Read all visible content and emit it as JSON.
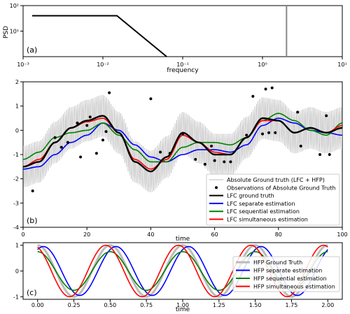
{
  "chart_data": [
    {
      "panel": "(a)",
      "type": "line",
      "xlabel": "frequency",
      "ylabel": "PSD",
      "xscale": "log",
      "yscale": "log",
      "xlim": [
        0.001,
        10
      ],
      "ylim": [
        1,
        100
      ],
      "xticks": [
        {
          "v": 0.001,
          "label": "10⁻³"
        },
        {
          "v": 0.01,
          "label": "10⁻²"
        },
        {
          "v": 0.1,
          "label": "10⁻¹"
        },
        {
          "v": 1,
          "label": "10⁰"
        },
        {
          "v": 10,
          "label": "10¹"
        }
      ],
      "yticks": [
        {
          "v": 10,
          "label": "10¹"
        },
        {
          "v": 100,
          "label": "10²"
        }
      ],
      "series": [
        {
          "color": "#000000",
          "x": [
            0.0013,
            0.015,
            0.063
          ],
          "y": [
            40,
            40,
            1
          ]
        },
        {
          "color": "#888888",
          "x": [
            2.0,
            2.0
          ],
          "y": [
            1,
            100
          ]
        }
      ]
    },
    {
      "panel": "(b)",
      "type": "line",
      "xlabel": "time",
      "xlim": [
        0,
        100
      ],
      "ylim": [
        -4,
        2
      ],
      "xticks": [
        0,
        20,
        40,
        60,
        80,
        100
      ],
      "yticks": [
        -4,
        -3,
        -2,
        -1,
        0,
        1,
        2
      ],
      "hfp_oscillation": {
        "frequency": 2.0,
        "amplitude": 0.9
      },
      "lfc_truth": {
        "x": [
          0,
          5,
          10,
          15,
          20,
          25,
          30,
          35,
          40,
          45,
          50,
          55,
          60,
          65,
          70,
          75,
          80,
          85,
          90,
          95,
          100
        ],
        "y": [
          -1.5,
          -1.3,
          -0.5,
          0.1,
          0.4,
          0.6,
          -0.1,
          -1.3,
          -1.7,
          -1.1,
          -0.1,
          -0.5,
          -1.0,
          -1.0,
          -0.3,
          0.5,
          0.4,
          -0.1,
          0.1,
          -0.1,
          0.1
        ]
      },
      "observations": {
        "x": [
          3,
          10,
          12,
          14,
          17,
          18,
          20,
          21,
          23,
          25,
          26,
          27,
          40,
          43,
          46,
          50,
          54,
          57,
          59,
          60,
          63,
          65,
          70,
          72,
          75,
          76,
          77,
          78,
          79,
          86,
          87,
          93,
          95,
          96
        ],
        "y": [
          -2.5,
          -0.3,
          -0.7,
          -0.5,
          0.3,
          -1.1,
          0.2,
          0.55,
          -0.95,
          -0.4,
          -0.05,
          1.55,
          1.3,
          -0.9,
          -0.95,
          -0.15,
          -1.2,
          -1.4,
          -0.65,
          -1.25,
          -1.3,
          -1.3,
          -0.2,
          1.4,
          -0.15,
          1.7,
          -0.1,
          1.75,
          -0.1,
          0.75,
          -0.65,
          -1.0,
          0.6,
          -1.0
        ]
      },
      "series": [
        {
          "name": "LFC separate estimation",
          "color": "#0000ff",
          "x": [
            0,
            5,
            10,
            15,
            20,
            25,
            30,
            35,
            40,
            45,
            50,
            55,
            60,
            65,
            70,
            75,
            80,
            85,
            90,
            95,
            100
          ],
          "y": [
            -1.6,
            -1.5,
            -1.0,
            -0.5,
            -0.2,
            0.3,
            0.0,
            -0.6,
            -1.1,
            -1.3,
            -1.0,
            -0.8,
            -0.8,
            -0.9,
            -0.6,
            0.2,
            0.5,
            0.3,
            0.0,
            -0.1,
            -0.2
          ]
        },
        {
          "name": "LFC sequential estimation",
          "color": "#008000",
          "x": [
            0,
            5,
            10,
            15,
            20,
            25,
            30,
            35,
            40,
            45,
            50,
            55,
            60,
            65,
            70,
            75,
            80,
            85,
            90,
            95,
            100
          ],
          "y": [
            -1.2,
            -0.9,
            -0.3,
            -0.1,
            0.0,
            0.3,
            -0.2,
            -0.8,
            -1.3,
            -1.3,
            -0.7,
            -0.5,
            -0.5,
            -0.6,
            -0.3,
            0.4,
            0.7,
            0.4,
            0.0,
            -0.2,
            0.3
          ]
        },
        {
          "name": "LFC simultaneous estimation",
          "color": "#ff0000",
          "x": [
            0,
            5,
            10,
            15,
            20,
            25,
            30,
            35,
            40,
            45,
            50,
            55,
            60,
            65,
            70,
            75,
            80,
            85,
            90,
            95,
            100
          ],
          "y": [
            -1.5,
            -1.2,
            -0.5,
            0.1,
            0.35,
            0.5,
            -0.1,
            -1.2,
            -1.6,
            -1.2,
            -0.2,
            -0.5,
            -0.9,
            -1.0,
            -0.3,
            0.4,
            0.4,
            -0.1,
            0.1,
            -0.1,
            0.2
          ]
        }
      ],
      "legend": {
        "placement": "lower-right",
        "entries": [
          {
            "label": "Absolute Ground truth (LFC + HFP)",
            "kind": "line",
            "color": "#bbbbbb"
          },
          {
            "label": "Observations of Absolute Ground Truth",
            "kind": "marker",
            "color": "#000000"
          },
          {
            "label": "LFC ground truth",
            "kind": "line",
            "color": "#000000"
          },
          {
            "label": "LFC separate estimation",
            "kind": "line",
            "color": "#0000ff"
          },
          {
            "label": "LFC sequential estimation",
            "kind": "line",
            "color": "#008000"
          },
          {
            "label": "LFC simultaneous estimation",
            "kind": "line",
            "color": "#ff0000"
          }
        ]
      }
    },
    {
      "panel": "(c)",
      "type": "line",
      "xlabel": "time",
      "xlim": [
        -0.1,
        2.1
      ],
      "ylim": [
        -1.1,
        1.1
      ],
      "xticks": [
        0.0,
        0.25,
        0.5,
        0.75,
        1.0,
        1.25,
        1.5,
        1.75,
        2.0
      ],
      "xtick_labels": [
        "0.00",
        "0.25",
        "0.50",
        "0.75",
        "1.00",
        "1.25",
        "1.50",
        "1.75",
        "2.00"
      ],
      "yticks": [
        -1,
        0,
        1
      ],
      "series": [
        {
          "name": "HFP Ground Truth",
          "color": "#bbbbbb",
          "amplitude": 1.0,
          "phase": 0.0,
          "frequency": 2.0
        },
        {
          "name": "HFP separate estimation",
          "color": "#0000ff",
          "amplitude": 0.95,
          "phase": 0.04,
          "frequency": 2.0
        },
        {
          "name": "HFP sequential estimation",
          "color": "#008000",
          "amplitude": 0.75,
          "phase": 0.0,
          "frequency": 2.0
        },
        {
          "name": "HFP simultaneous estimation",
          "color": "#ff0000",
          "amplitude": 1.0,
          "phase": -0.03,
          "frequency": 2.0
        }
      ],
      "legend": {
        "placement": "right"
      }
    }
  ]
}
